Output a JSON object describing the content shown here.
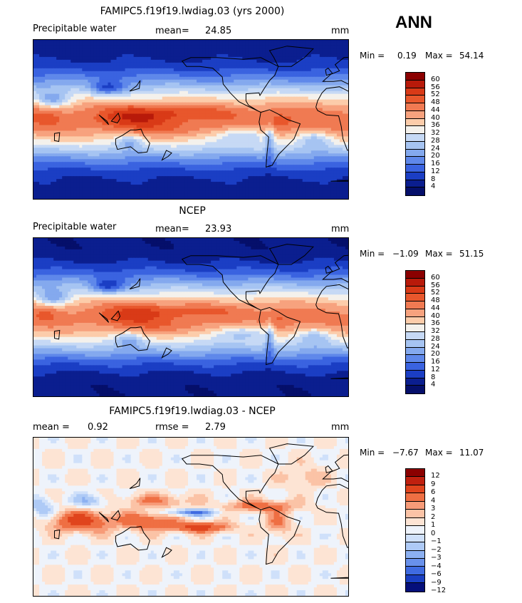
{
  "season": "ANN",
  "panels": [
    {
      "title": "FAMIPC5.f19f19.lwdiag.03 (yrs 2000)",
      "left_label": "Precipitable water",
      "stat_label": "mean=",
      "stat_value": "24.85",
      "units": "mm",
      "min_label": "Min =",
      "min_value": "0.19",
      "max_label": "Max =",
      "max_value": "54.14",
      "scale": "abs",
      "colorbar_ticks": [
        "60",
        "56",
        "52",
        "48",
        "44",
        "40",
        "36",
        "32",
        "28",
        "24",
        "20",
        "16",
        "12",
        "8",
        "4"
      ]
    },
    {
      "title": "NCEP",
      "left_label": "Precipitable water",
      "stat_label": "mean=",
      "stat_value": "23.93",
      "units": "mm",
      "min_label": "Min =",
      "min_value": "−1.09",
      "max_label": "Max =",
      "max_value": "51.15",
      "scale": "abs",
      "colorbar_ticks": [
        "60",
        "56",
        "52",
        "48",
        "44",
        "40",
        "36",
        "32",
        "28",
        "24",
        "20",
        "16",
        "12",
        "8",
        "4"
      ]
    },
    {
      "title": "FAMIPC5.f19f19.lwdiag.03 - NCEP",
      "left_label": "mean =",
      "left_value": "0.92",
      "stat_label": "rmse =",
      "stat_value": "2.79",
      "units": "mm",
      "min_label": "Min =",
      "min_value": "−7.67",
      "max_label": "Max =",
      "max_value": "11.07",
      "scale": "diff",
      "colorbar_ticks": [
        "12",
        "9",
        "6",
        "4",
        "3",
        "2",
        "1",
        "0",
        "−1",
        "−2",
        "−3",
        "−4",
        "−6",
        "−9",
        "−12"
      ]
    }
  ],
  "chart_data": [
    {
      "type": "heatmap",
      "title": "FAMIPC5.f19f19.lwdiag.03 (yrs 2000)",
      "variable": "Precipitable water",
      "units": "mm",
      "mean": 24.85,
      "min": 0.19,
      "max": 54.14,
      "levels": [
        4,
        8,
        12,
        16,
        20,
        24,
        28,
        32,
        36,
        40,
        44,
        48,
        52,
        56,
        60
      ]
    },
    {
      "type": "heatmap",
      "title": "NCEP",
      "variable": "Precipitable water",
      "units": "mm",
      "mean": 23.93,
      "min": -1.09,
      "max": 51.15,
      "levels": [
        4,
        8,
        12,
        16,
        20,
        24,
        28,
        32,
        36,
        40,
        44,
        48,
        52,
        56,
        60
      ]
    },
    {
      "type": "heatmap",
      "title": "FAMIPC5.f19f19.lwdiag.03 - NCEP",
      "units": "mm",
      "mean": 0.92,
      "rmse": 2.79,
      "min": -7.67,
      "max": 11.07,
      "levels": [
        -12,
        -9,
        -6,
        -4,
        -3,
        -2,
        -1,
        0,
        1,
        2,
        3,
        4,
        6,
        9,
        12
      ]
    }
  ],
  "colors": {
    "abs_scale": [
      "#8b0000",
      "#b81a0a",
      "#d93a17",
      "#e8572c",
      "#f07a52",
      "#f7a27e",
      "#fcccaa",
      "#f4f1ec",
      "#c6d9f5",
      "#a6c4f2",
      "#84a9ee",
      "#5f88ea",
      "#3a63e0",
      "#1b3ec4",
      "#0b1e8f",
      "#050f6a"
    ],
    "diff_scale": [
      "#8b0000",
      "#c0200f",
      "#e0441d",
      "#ef6f43",
      "#f79b78",
      "#fbc3a6",
      "#fde4d4",
      "#eef3fb",
      "#cfe0fa",
      "#aecaf6",
      "#8cb0f1",
      "#6991eb",
      "#3f6be1",
      "#1a3fc2",
      "#050f7a"
    ]
  }
}
